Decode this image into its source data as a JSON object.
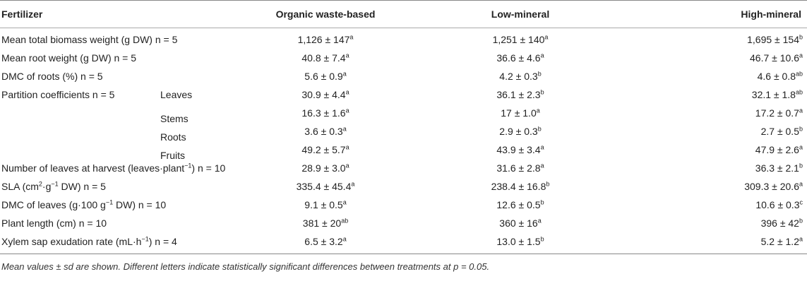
{
  "headers": [
    "Fertilizer",
    "Organic waste-based",
    "Low-mineral",
    "High-mineral"
  ],
  "rows": [
    {
      "label": "Mean total biomass weight (g DW) ",
      "n": "n = 5",
      "sub": "",
      "cells": [
        [
          "1,126 ± 147",
          "a"
        ],
        [
          "1,251 ± 140",
          "a"
        ],
        [
          "1,695 ± 154",
          "b"
        ]
      ]
    },
    {
      "label": "Mean root weight (g DW) ",
      "n": "n = 5",
      "sub": "",
      "cells": [
        [
          "40.8 ± 7.4",
          "a"
        ],
        [
          "36.6 ± 4.6",
          "a"
        ],
        [
          "46.7 ± 10.6",
          "a"
        ]
      ]
    },
    {
      "label": "DMC of roots (%) ",
      "n": "n = 5",
      "sub": "",
      "cells": [
        [
          "5.6 ± 0.9",
          "a"
        ],
        [
          "4.2 ± 0.3",
          "b"
        ],
        [
          "4.6 ± 0.8",
          "ab"
        ]
      ]
    },
    {
      "label": "Partition coefficients ",
      "n": "n = 5",
      "sub": "Leaves",
      "cells": [
        [
          "30.9 ± 4.4",
          "a"
        ],
        [
          "36.1 ± 2.3",
          "b"
        ],
        [
          "32.1 ± 1.8",
          "ab"
        ]
      ]
    },
    {
      "label": "",
      "n": "",
      "sub": "Stems",
      "cells": [
        [
          "16.3 ± 1.6",
          "a"
        ],
        [
          "17 ± 1.0",
          "a"
        ],
        [
          "17.2 ± 0.7",
          "a"
        ]
      ]
    },
    {
      "label": "",
      "n": "",
      "sub": "Roots",
      "cells": [
        [
          "3.6 ± 0.3",
          "a"
        ],
        [
          "2.9 ± 0.3",
          "b"
        ],
        [
          "2.7 ± 0.5",
          "b"
        ]
      ]
    },
    {
      "label": "",
      "n": "",
      "sub": "Fruits",
      "cells": [
        [
          "49.2 ± 5.7",
          "a"
        ],
        [
          "43.9 ± 3.4",
          "a"
        ],
        [
          "47.9 ± 2.6",
          "a"
        ]
      ]
    },
    {
      "label": "Number of leaves at harvest (leaves·plant",
      "labelSup": "−1",
      "labelAfter": ") ",
      "n": "n = 10",
      "sub": "",
      "cells": [
        [
          "28.9 ± 3.0",
          "a"
        ],
        [
          "31.6 ± 2.8",
          "a"
        ],
        [
          "36.3 ± 2.1",
          "b"
        ]
      ]
    },
    {
      "label": "SLA (cm",
      "labelSup": "2",
      "labelAfter": "·g",
      "labelSup2": "−1",
      "labelAfter2": " DW) ",
      "n": "n = 5",
      "sub": "",
      "cells": [
        [
          "335.4 ± 45.4",
          "a"
        ],
        [
          "238.4 ± 16.8",
          "b"
        ],
        [
          "309.3 ± 20.6",
          "a"
        ]
      ]
    },
    {
      "label": "DMC of leaves (g·100 g",
      "labelSup": "−1",
      "labelAfter": " DW) ",
      "n": "n = 10",
      "sub": "",
      "cells": [
        [
          "9.1 ± 0.5",
          "a"
        ],
        [
          "12.6 ± 0.5",
          "b"
        ],
        [
          "10.6 ± 0.3",
          "c"
        ]
      ]
    },
    {
      "label": "Plant length (cm) ",
      "n": "n = 10",
      "sub": "",
      "cells": [
        [
          "381 ± 20",
          "ab"
        ],
        [
          "360 ± 16",
          "a"
        ],
        [
          "396 ± 42",
          "b"
        ]
      ]
    },
    {
      "label": "Xylem sap exudation rate (mL·h",
      "labelSup": "−1",
      "labelAfter": ") ",
      "n": "n = 4",
      "sub": "",
      "cells": [
        [
          "6.5 ± 3.2",
          "a"
        ],
        [
          "13.0 ± 1.5",
          "b"
        ],
        [
          "5.2 ± 1.2",
          "a"
        ]
      ]
    }
  ],
  "footnote": "Mean values ± sd are shown. Different letters indicate statistically significant differences between treatments at p = 0.05."
}
